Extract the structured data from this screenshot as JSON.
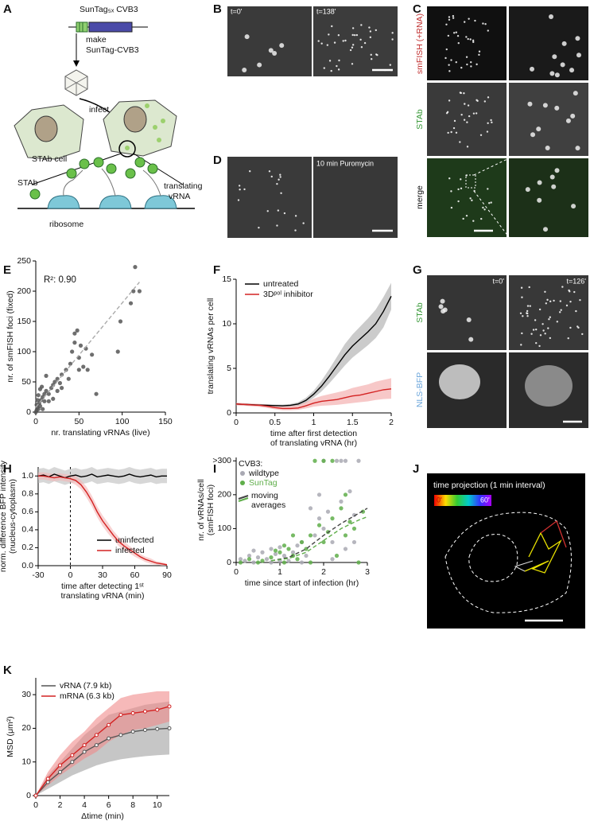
{
  "panel_labels": [
    "A",
    "B",
    "C",
    "D",
    "E",
    "F",
    "G",
    "H",
    "I",
    "J",
    "K"
  ],
  "diagram_a": {
    "construct": "SunTag₅ₓ CVB3",
    "make": "make",
    "virus": "SunTag-CVB3",
    "infect": "infect",
    "cell": "STAb cell",
    "stab": "STAb",
    "ribosome": "ribosome",
    "translating": "translating",
    "vrna": "vRNA"
  },
  "images": {
    "b": {
      "labels": [
        "t=0'",
        "t=138'"
      ]
    },
    "c": {
      "rows": [
        "smFISH (+RNA)",
        "STAb",
        "merge"
      ]
    },
    "d": {
      "label": "10 min Puromycin"
    },
    "g": {
      "labels": [
        "t=0'",
        "t=126'"
      ],
      "rows": [
        "STAb",
        "NLS-BFP"
      ]
    },
    "j": {
      "title": "time projection (1 min interval)",
      "scale": [
        "0'",
        "60'"
      ]
    }
  },
  "chart_data": [
    {
      "type": "scatter",
      "annotation": "R²: 0.90",
      "xlabel": [
        "nr. translating vRNAs (live)"
      ],
      "ylabel": [
        "nr. of smFISH foci (fixed)"
      ],
      "xlim": [
        0,
        150
      ],
      "xticks": [
        0,
        50,
        100,
        150
      ],
      "ylim": [
        0,
        250
      ],
      "yticks": [
        0,
        50,
        100,
        150,
        200,
        250
      ],
      "series": [
        {
          "color": "#555555",
          "x": [
            0,
            1,
            2,
            3,
            1,
            4,
            5,
            6,
            8,
            3,
            10,
            12,
            5,
            7,
            15,
            18,
            20,
            22,
            25,
            12,
            28,
            30,
            35,
            38,
            40,
            42,
            45,
            48,
            50,
            52,
            55,
            60,
            65,
            70,
            95,
            98,
            110,
            113,
            115,
            120,
            8,
            15,
            25,
            30,
            20,
            45,
            50,
            58,
            2,
            10
          ],
          "y": [
            0,
            3,
            8,
            5,
            12,
            15,
            10,
            20,
            25,
            28,
            30,
            35,
            38,
            42,
            30,
            40,
            45,
            50,
            55,
            60,
            48,
            62,
            70,
            55,
            80,
            100,
            130,
            135,
            90,
            110,
            75,
            70,
            95,
            30,
            100,
            150,
            180,
            200,
            240,
            200,
            5,
            18,
            35,
            40,
            22,
            115,
            70,
            105,
            20,
            18
          ]
        }
      ],
      "fit": {
        "color": "#aaaaaa",
        "x": [
          0,
          120
        ],
        "y": [
          8,
          215
        ]
      }
    },
    {
      "type": "line",
      "xlabel": [
        "time after first detection",
        "of translating vRNA (hr)"
      ],
      "ylabel": [
        "translating vRNAs per cell"
      ],
      "xlim": [
        0,
        2
      ],
      "xticks": [
        0,
        0.5,
        1,
        1.5,
        2
      ],
      "ylim": [
        0,
        15
      ],
      "yticks": [
        0,
        5,
        10,
        15
      ],
      "x": [
        0,
        0.1,
        0.2,
        0.3,
        0.4,
        0.5,
        0.6,
        0.7,
        0.8,
        0.9,
        1,
        1.1,
        1.2,
        1.3,
        1.4,
        1.5,
        1.6,
        1.7,
        1.8,
        1.9,
        2
      ],
      "series": [
        {
          "name": "untreated",
          "color": "#000000",
          "band_color": "#a8a8a8",
          "values": [
            1.0,
            0.95,
            0.92,
            0.88,
            0.85,
            0.82,
            0.8,
            0.85,
            1.0,
            1.4,
            2.1,
            3.0,
            4.1,
            5.3,
            6.5,
            7.5,
            8.3,
            9.1,
            10.0,
            11.4,
            13.1
          ],
          "lower": [
            0.9,
            0.85,
            0.82,
            0.78,
            0.74,
            0.7,
            0.68,
            0.7,
            0.82,
            1.1,
            1.7,
            2.4,
            3.3,
            4.3,
            5.3,
            6.2,
            6.9,
            7.6,
            8.4,
            9.6,
            11.6
          ],
          "upper": [
            1.1,
            1.05,
            1.02,
            0.98,
            0.96,
            0.94,
            0.93,
            1.0,
            1.2,
            1.7,
            2.5,
            3.6,
            4.9,
            6.3,
            7.7,
            8.8,
            9.7,
            10.6,
            11.6,
            13.0,
            14.6
          ]
        },
        {
          "name": "3Dᵖᵒˡ inhibitor",
          "color": "#d42222",
          "band_color": "#f2a3a3",
          "values": [
            1.0,
            0.95,
            0.9,
            0.85,
            0.75,
            0.6,
            0.5,
            0.5,
            0.55,
            0.8,
            1.1,
            1.3,
            1.4,
            1.5,
            1.7,
            1.9,
            2.0,
            2.2,
            2.4,
            2.6,
            2.7
          ],
          "lower": [
            0.85,
            0.8,
            0.75,
            0.68,
            0.55,
            0.4,
            0.3,
            0.3,
            0.35,
            0.5,
            0.7,
            0.8,
            0.85,
            0.9,
            1.0,
            1.1,
            1.2,
            1.3,
            1.45,
            1.55,
            1.6
          ],
          "upper": [
            1.15,
            1.1,
            1.05,
            1.02,
            0.95,
            0.8,
            0.7,
            0.75,
            0.85,
            1.2,
            1.6,
            1.9,
            2.1,
            2.3,
            2.5,
            2.8,
            3.0,
            3.2,
            3.5,
            3.7,
            3.9
          ]
        }
      ]
    },
    {
      "type": "line",
      "vline": 0,
      "xlabel": [
        "time after detecting 1ˢᵗ",
        "translating vRNA (min)"
      ],
      "ylabel": [
        "norm. difference BFP intensity",
        "(nucleus-cytoplasm)"
      ],
      "xlim": [
        -30,
        90
      ],
      "xticks": [
        -30,
        0,
        30,
        60,
        90
      ],
      "ylim": [
        0,
        1.1
      ],
      "yticks": [
        {
          "value": 0,
          "label": "0.0"
        },
        0.2,
        0.4,
        0.6,
        0.8,
        {
          "value": 1,
          "label": "1.0"
        }
      ],
      "x": [
        -30,
        -25,
        -20,
        -15,
        -10,
        -5,
        0,
        5,
        10,
        15,
        20,
        25,
        30,
        35,
        40,
        45,
        50,
        55,
        60,
        65,
        70,
        75,
        80,
        85,
        90
      ],
      "series": [
        {
          "name": "uninfected",
          "color": "#000000",
          "band_color": "#bdbdbd",
          "values": [
            1.0,
            1.01,
            0.99,
            1.02,
            1.0,
            0.98,
            1.0,
            1.01,
            0.99,
            1.0,
            1.02,
            0.99,
            1.0,
            1.01,
            1.0,
            0.99,
            1.0,
            1.02,
            1.0,
            0.99,
            1.0,
            1.01,
            0.99,
            1.0,
            1.0
          ],
          "lower": [
            0.92,
            0.93,
            0.91,
            0.94,
            0.92,
            0.9,
            0.92,
            0.93,
            0.91,
            0.92,
            0.94,
            0.91,
            0.92,
            0.93,
            0.92,
            0.91,
            0.92,
            0.94,
            0.92,
            0.91,
            0.92,
            0.93,
            0.91,
            0.92,
            0.92
          ],
          "upper": [
            1.08,
            1.09,
            1.07,
            1.1,
            1.08,
            1.06,
            1.08,
            1.09,
            1.07,
            1.08,
            1.1,
            1.07,
            1.08,
            1.09,
            1.08,
            1.07,
            1.08,
            1.1,
            1.08,
            1.07,
            1.08,
            1.09,
            1.07,
            1.08,
            1.08
          ]
        },
        {
          "name": "infected",
          "color": "#d42222",
          "band_color": "#f4b6b6",
          "values": [
            1.0,
            1.0,
            0.99,
            0.98,
            0.99,
            0.98,
            0.97,
            0.95,
            0.9,
            0.82,
            0.72,
            0.6,
            0.5,
            0.42,
            0.34,
            0.27,
            0.22,
            0.18,
            0.14,
            0.1,
            0.07,
            0.05,
            0.03,
            0.02,
            0.01
          ],
          "lower": [
            0.96,
            0.96,
            0.95,
            0.94,
            0.95,
            0.94,
            0.93,
            0.9,
            0.85,
            0.76,
            0.66,
            0.54,
            0.44,
            0.36,
            0.29,
            0.22,
            0.17,
            0.14,
            0.1,
            0.07,
            0.04,
            0.02,
            0.01,
            0.0,
            0.0
          ],
          "upper": [
            1.04,
            1.04,
            1.03,
            1.02,
            1.03,
            1.02,
            1.01,
            1.0,
            0.95,
            0.88,
            0.78,
            0.66,
            0.56,
            0.48,
            0.39,
            0.32,
            0.27,
            0.22,
            0.18,
            0.13,
            0.1,
            0.08,
            0.05,
            0.04,
            0.02
          ]
        }
      ]
    },
    {
      "type": "scatter",
      "legend_title": "CVB3:",
      "moving_average_label": [
        "moving",
        "averages"
      ],
      "xlabel": [
        "time since start of infection (hr)"
      ],
      "ylabel": [
        "nr. of vRNAs/cell",
        "(smFISH foci)"
      ],
      "xlim": [
        0,
        3
      ],
      "xticks": [
        0,
        1,
        2,
        3
      ],
      "ylim": [
        0,
        310
      ],
      "yticks": [
        0,
        100,
        200,
        {
          "value": 300,
          "label": ">300"
        }
      ],
      "series": [
        {
          "name": "wildtype",
          "color": "#a9a9b3",
          "x": [
            0.1,
            0.2,
            0.3,
            0.4,
            0.5,
            0.6,
            0.7,
            0.8,
            0.9,
            1.0,
            1.1,
            1.2,
            1.3,
            1.4,
            1.5,
            1.6,
            1.7,
            1.8,
            1.9,
            2.0,
            2.1,
            2.2,
            2.3,
            2.4,
            2.5,
            2.6,
            2.7,
            2.8,
            2.2,
            2.5,
            1.0,
            0.4,
            1.5,
            2.0,
            2.4,
            2.7,
            1.9,
            0.8
          ],
          "y": [
            10,
            5,
            20,
            0,
            15,
            30,
            10,
            40,
            25,
            45,
            20,
            5,
            30,
            50,
            60,
            20,
            160,
            80,
            130,
            100,
            150,
            60,
            300,
            180,
            300,
            210,
            140,
            300,
            10,
            40,
            5,
            35,
            0,
            300,
            300,
            60,
            200,
            0
          ],
          "moving_average": {
            "x": [
              0.8,
              1.2,
              1.6,
              2.0,
              2.4,
              2.8,
              3.0
            ],
            "y": [
              5,
              15,
              40,
              80,
              115,
              145,
              160
            ]
          },
          "ma_color": "#444444"
        },
        {
          "name": "SunTag",
          "color": "#5fae4a",
          "x": [
            0.1,
            0.3,
            0.5,
            0.6,
            0.8,
            1.0,
            1.1,
            1.2,
            1.3,
            1.4,
            1.5,
            1.6,
            1.7,
            1.8,
            1.9,
            2.0,
            2.1,
            2.2,
            2.3,
            2.4,
            2.5,
            2.6,
            2.7,
            2.8,
            2.9,
            1.7,
            2.0,
            1.3,
            0.9,
            2.2,
            2.5,
            1.1
          ],
          "y": [
            0,
            10,
            0,
            5,
            15,
            30,
            0,
            40,
            20,
            10,
            60,
            40,
            80,
            300,
            110,
            60,
            90,
            130,
            20,
            160,
            200,
            120,
            100,
            0,
            150,
            0,
            300,
            80,
            35,
            300,
            80,
            50
          ],
          "moving_average": {
            "x": [
              0.8,
              1.2,
              1.6,
              2.0,
              2.4,
              2.8,
              3.0
            ],
            "y": [
              5,
              12,
              30,
              65,
              100,
              125,
              135
            ]
          },
          "ma_color": "#5fae4a"
        }
      ]
    },
    {
      "type": "line",
      "markers": true,
      "xlabel": [
        "Δtime (min)"
      ],
      "ylabel": [
        "MSD (μm²)"
      ],
      "xlim": [
        0,
        11
      ],
      "xticks": [
        0,
        2,
        4,
        6,
        8,
        10
      ],
      "ylim": [
        0,
        35
      ],
      "yticks": [
        0,
        10,
        20,
        30
      ],
      "x": [
        0,
        1,
        2,
        3,
        4,
        5,
        6,
        7,
        8,
        9,
        10,
        11
      ],
      "series": [
        {
          "name": "vRNA (7.9 kb)",
          "color": "#555555",
          "band_color": "#a0a0a0",
          "values": [
            0,
            4,
            7,
            10,
            13,
            15,
            17,
            18,
            19,
            19.5,
            19.8,
            20
          ],
          "lower": [
            0,
            2,
            4,
            6,
            7.5,
            9,
            10,
            10.8,
            11.3,
            11.7,
            12,
            12.2
          ],
          "upper": [
            0,
            6,
            10,
            14,
            18,
            21,
            24,
            25,
            26,
            27,
            27.5,
            28
          ]
        },
        {
          "name": "mRNA (6.3 kb)",
          "color": "#d42222",
          "band_color": "#f08a8a",
          "values": [
            0,
            5,
            9,
            12,
            15,
            18,
            21,
            24,
            24.5,
            25,
            25.5,
            26.5
          ],
          "lower": [
            0,
            3,
            6,
            8.5,
            11,
            13,
            16,
            18,
            19.5,
            20,
            21,
            22
          ],
          "upper": [
            0,
            7,
            12,
            16,
            19,
            23,
            26,
            29,
            30,
            30.5,
            31,
            31
          ]
        }
      ]
    }
  ]
}
